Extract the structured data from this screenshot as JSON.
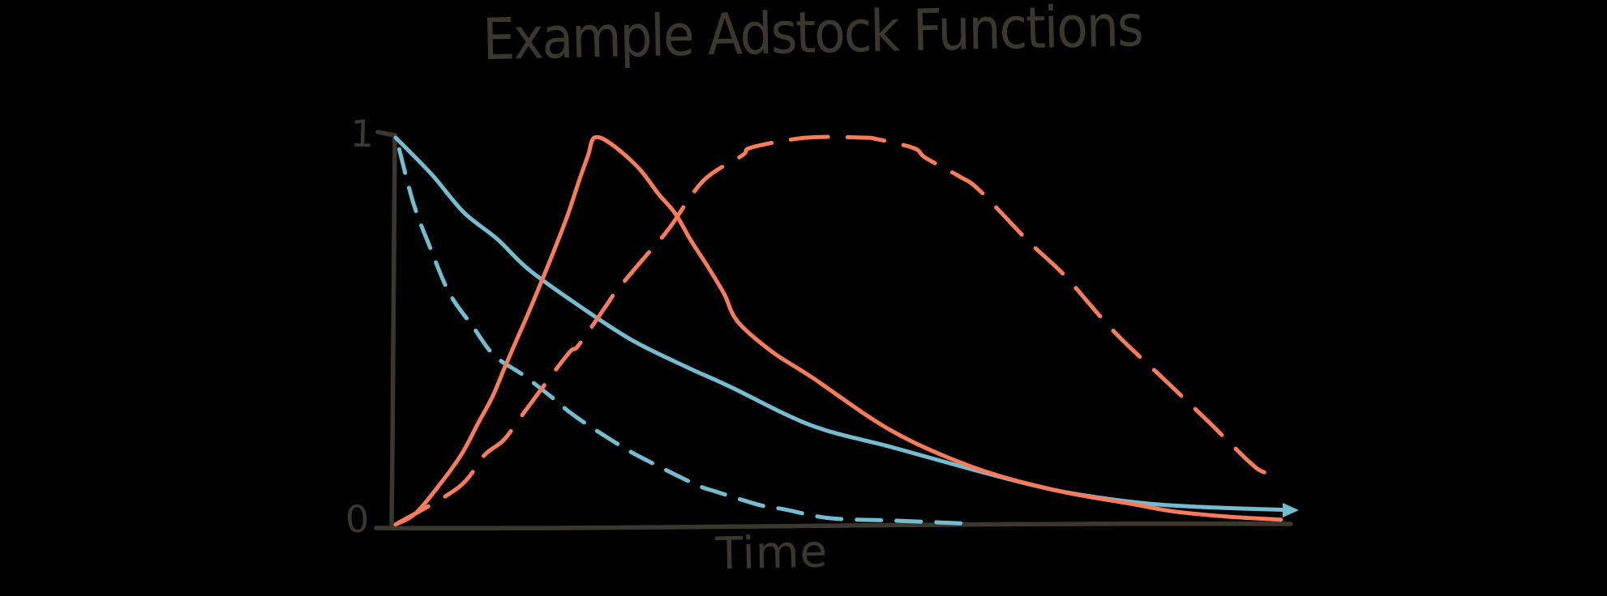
{
  "title": "Example Adstock Functions",
  "axes": {
    "y_max_label": "1",
    "y_min_label": "0",
    "x_label": "Time"
  },
  "colors": {
    "background": "#000000",
    "ink": "#3a372e",
    "teal": "#74bccf",
    "coral": "#f87b5b"
  },
  "chart_data": {
    "type": "line",
    "title": "Example Adstock Functions",
    "xlabel": "Time",
    "ylabel": "",
    "xlim": [
      0,
      1
    ],
    "ylim": [
      0,
      1
    ],
    "grid": false,
    "legend": "none",
    "y_tick_labels": [
      "0",
      "1"
    ],
    "x_tick_labels": [],
    "style": "hand-drawn sketch, black background, no gridlines",
    "series": [
      {
        "name": "teal-solid-slow-geometric-decay",
        "color": "teal",
        "line_style": "solid",
        "points": [
          [
            0,
            1.0
          ],
          [
            0.04,
            0.906
          ],
          [
            0.076,
            0.808
          ],
          [
            0.113,
            0.74
          ],
          [
            0.149,
            0.66
          ],
          [
            0.204,
            0.569
          ],
          [
            0.264,
            0.479
          ],
          [
            0.325,
            0.41
          ],
          [
            0.373,
            0.36
          ],
          [
            0.464,
            0.26
          ],
          [
            0.554,
            0.204
          ],
          [
            0.645,
            0.146
          ],
          [
            0.735,
            0.094
          ],
          [
            0.826,
            0.062
          ],
          [
            0.899,
            0.05
          ],
          [
            1.0,
            0.042
          ]
        ]
      },
      {
        "name": "teal-dashed-fast-geometric-decay",
        "color": "teal",
        "line_style": "dashed",
        "points": [
          [
            0.004,
            0.97
          ],
          [
            0.02,
            0.83
          ],
          [
            0.038,
            0.72
          ],
          [
            0.06,
            0.6
          ],
          [
            0.086,
            0.515
          ],
          [
            0.11,
            0.44
          ],
          [
            0.142,
            0.39
          ],
          [
            0.174,
            0.333
          ],
          [
            0.192,
            0.298
          ],
          [
            0.212,
            0.265
          ],
          [
            0.255,
            0.202
          ],
          [
            0.283,
            0.167
          ],
          [
            0.335,
            0.108
          ],
          [
            0.357,
            0.09
          ],
          [
            0.408,
            0.054
          ],
          [
            0.434,
            0.044
          ],
          [
            0.485,
            0.021
          ],
          [
            0.554,
            0.015
          ],
          [
            0.631,
            0.008
          ]
        ]
      },
      {
        "name": "coral-solid-early-peak-delayed-adstock",
        "color": "coral",
        "line_style": "solid",
        "points": [
          [
            0,
            0.005
          ],
          [
            0.023,
            0.035
          ],
          [
            0.053,
            0.119
          ],
          [
            0.074,
            0.187
          ],
          [
            0.092,
            0.265
          ],
          [
            0.108,
            0.333
          ],
          [
            0.122,
            0.41
          ],
          [
            0.135,
            0.479
          ],
          [
            0.147,
            0.542
          ],
          [
            0.162,
            0.625
          ],
          [
            0.177,
            0.71
          ],
          [
            0.192,
            0.8
          ],
          [
            0.205,
            0.89
          ],
          [
            0.215,
            0.955
          ],
          [
            0.222,
            1.0
          ],
          [
            0.24,
            0.985
          ],
          [
            0.271,
            0.923
          ],
          [
            0.294,
            0.854
          ],
          [
            0.312,
            0.806
          ],
          [
            0.33,
            0.735
          ],
          [
            0.349,
            0.667
          ],
          [
            0.367,
            0.598
          ],
          [
            0.382,
            0.527
          ],
          [
            0.42,
            0.45
          ],
          [
            0.464,
            0.385
          ],
          [
            0.554,
            0.246
          ],
          [
            0.645,
            0.152
          ],
          [
            0.735,
            0.094
          ],
          [
            0.826,
            0.056
          ],
          [
            0.871,
            0.038
          ],
          [
            0.93,
            0.025
          ],
          [
            0.989,
            0.017
          ]
        ]
      },
      {
        "name": "coral-dashed-late-peak-delayed-adstock",
        "color": "coral",
        "line_style": "dashed",
        "points": [
          [
            0,
            0.005
          ],
          [
            0.07,
            0.1
          ],
          [
            0.099,
            0.183
          ],
          [
            0.121,
            0.223
          ],
          [
            0.145,
            0.298
          ],
          [
            0.192,
            0.442
          ],
          [
            0.204,
            0.465
          ],
          [
            0.235,
            0.567
          ],
          [
            0.246,
            0.604
          ],
          [
            0.274,
            0.681
          ],
          [
            0.292,
            0.729
          ],
          [
            0.307,
            0.771
          ],
          [
            0.344,
            0.89
          ],
          [
            0.387,
            0.954
          ],
          [
            0.398,
            0.975
          ],
          [
            0.459,
            1.0
          ],
          [
            0.523,
            1.0
          ],
          [
            0.538,
            0.996
          ],
          [
            0.579,
            0.973
          ],
          [
            0.592,
            0.948
          ],
          [
            0.63,
            0.9
          ],
          [
            0.652,
            0.865
          ],
          [
            0.707,
            0.733
          ],
          [
            0.747,
            0.646
          ],
          [
            0.803,
            0.5
          ],
          [
            0.86,
            0.375
          ],
          [
            0.91,
            0.265
          ],
          [
            0.93,
            0.219
          ],
          [
            0.964,
            0.146
          ],
          [
            0.985,
            0.135
          ]
        ]
      }
    ]
  }
}
